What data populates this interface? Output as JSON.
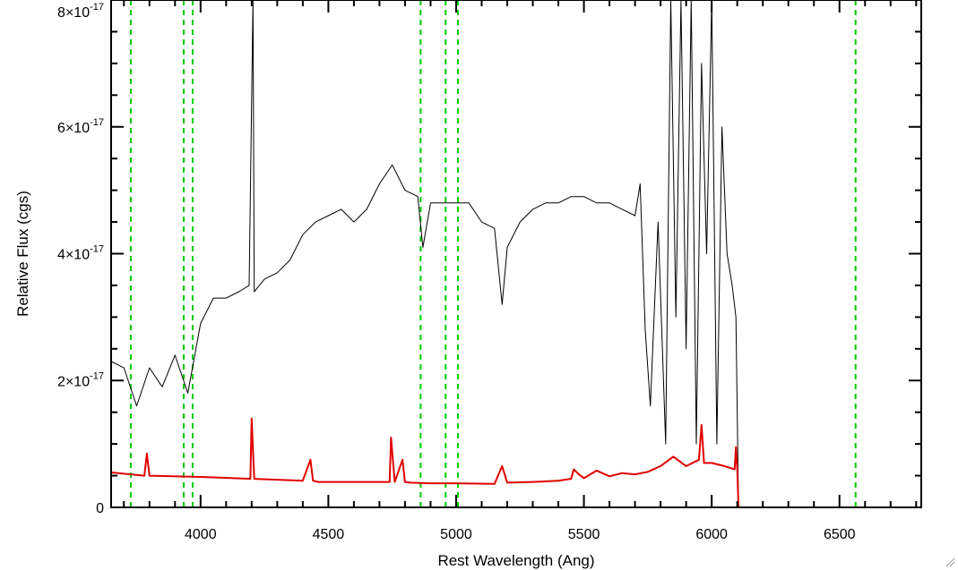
{
  "chart_data": {
    "type": "line",
    "xlabel": "Rest Wavelength (Ang)",
    "ylabel": "Relative Flux (cgs)",
    "xlim": [
      3650,
      6820
    ],
    "ylim": [
      0,
      8e-17
    ],
    "x_ticks": [
      {
        "value": 4000,
        "label": "4000"
      },
      {
        "value": 4500,
        "label": "4500"
      },
      {
        "value": 5000,
        "label": "5000"
      },
      {
        "value": 5500,
        "label": "5500"
      },
      {
        "value": 6000,
        "label": "6000"
      },
      {
        "value": 6500,
        "label": "6500"
      }
    ],
    "y_ticks": [
      {
        "value": 0,
        "label": "0",
        "exp": ""
      },
      {
        "value": 2e-17,
        "label": "2×10",
        "exp": "-17"
      },
      {
        "value": 4e-17,
        "label": "4×10",
        "exp": "-17"
      },
      {
        "value": 6e-17,
        "label": "6×10",
        "exp": "-17"
      },
      {
        "value": 8e-17,
        "label": "8×10",
        "exp": "-17"
      }
    ],
    "grid": false,
    "colors": {
      "spectrum": "#000000",
      "error": "#e00000",
      "lines": "#00cc00"
    },
    "reference_lines": [
      3727,
      3934,
      3969,
      4861,
      4959,
      5007,
      6563
    ],
    "series": [
      {
        "role": "spectrum",
        "x": [
          3650,
          3700,
          3750,
          3800,
          3850,
          3900,
          3950,
          4000,
          4050,
          4100,
          4150,
          4190,
          4205,
          4210,
          4250,
          4300,
          4350,
          4400,
          4450,
          4500,
          4550,
          4600,
          4650,
          4700,
          4750,
          4800,
          4850,
          4870,
          4900,
          4950,
          5000,
          5050,
          5100,
          5150,
          5180,
          5200,
          5250,
          5300,
          5350,
          5400,
          5450,
          5500,
          5550,
          5600,
          5650,
          5700,
          5720,
          5740,
          5760,
          5790,
          5820,
          5840,
          5860,
          5880,
          5900,
          5920,
          5940,
          5960,
          5980,
          6000,
          6020,
          6040,
          6060,
          6080,
          6095,
          6105
        ],
        "y": [
          2.3e-17,
          2.2e-17,
          1.6e-17,
          2.2e-17,
          1.9e-17,
          2.4e-17,
          1.8e-17,
          2.9e-17,
          3.3e-17,
          3.3e-17,
          3.4e-17,
          3.5e-17,
          8e-17,
          3.4e-17,
          3.6e-17,
          3.7e-17,
          3.9e-17,
          4.3e-17,
          4.5e-17,
          4.6e-17,
          4.7e-17,
          4.5e-17,
          4.7e-17,
          5.1e-17,
          5.4e-17,
          5e-17,
          4.9e-17,
          4.1e-17,
          4.8e-17,
          4.8e-17,
          4.8e-17,
          4.8e-17,
          4.5e-17,
          4.4e-17,
          3.2e-17,
          4.1e-17,
          4.5e-17,
          4.7e-17,
          4.8e-17,
          4.8e-17,
          4.9e-17,
          4.9e-17,
          4.8e-17,
          4.8e-17,
          4.7e-17,
          4.6e-17,
          5.1e-17,
          2.8e-17,
          1.6e-17,
          4.5e-17,
          1e-17,
          8e-17,
          3e-17,
          8e-17,
          2.5e-17,
          8e-17,
          1e-17,
          7e-17,
          4e-17,
          8e-17,
          1e-17,
          6e-17,
          4e-17,
          3.5e-17,
          3e-17,
          0
        ]
      },
      {
        "role": "error",
        "x": [
          3650,
          3780,
          3790,
          3800,
          4000,
          4195,
          4200,
          4210,
          4400,
          4430,
          4440,
          4460,
          4600,
          4740,
          4745,
          4760,
          4790,
          4800,
          4820,
          4900,
          5000,
          5150,
          5180,
          5200,
          5300,
          5400,
          5450,
          5460,
          5480,
          5500,
          5550,
          5600,
          5650,
          5700,
          5750,
          5800,
          5850,
          5900,
          5950,
          5960,
          5970,
          6000,
          6050,
          6090,
          6095,
          6100,
          6105,
          6820
        ],
        "y": [
          5.5e-18,
          5e-18,
          8.5e-18,
          5e-18,
          4.8e-18,
          4.5e-18,
          1.4e-17,
          4.5e-18,
          4.2e-18,
          7.5e-18,
          4.2e-18,
          4e-18,
          4e-18,
          4e-18,
          1.1e-17,
          4e-18,
          7.5e-18,
          4e-18,
          3.9e-18,
          3.8e-18,
          3.8e-18,
          3.7e-18,
          6.5e-18,
          3.9e-18,
          4e-18,
          4.2e-18,
          4.5e-18,
          6e-18,
          5.2e-18,
          4.6e-18,
          5.8e-18,
          4.9e-18,
          5.4e-18,
          5.2e-18,
          5.6e-18,
          6.5e-18,
          8e-18,
          6.5e-18,
          7.5e-18,
          1.3e-17,
          7e-18,
          7e-18,
          6.5e-18,
          6e-18,
          9.5e-18,
          6e-18,
          0,
          0
        ]
      }
    ]
  }
}
